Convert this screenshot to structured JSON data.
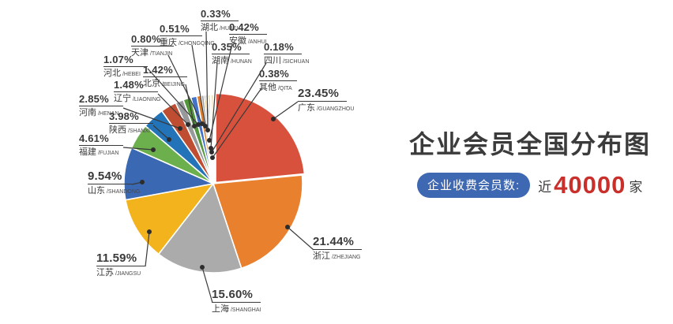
{
  "title": "企业会员全国分布图",
  "badge": {
    "label": "企业收费会员数:",
    "prefix": "近",
    "count": "40000",
    "suffix": "家",
    "badge_color": "#3e68b2",
    "count_color": "#c9302b"
  },
  "chart_data": {
    "type": "pie",
    "title": "企业会员全国分布图",
    "unit": "%",
    "total": 100,
    "legend_position": "callout-labels",
    "series": [
      {
        "name": "广东",
        "pinyin": "GUANGZHOU",
        "value": 23.45,
        "percent_label": "23.45%",
        "color": "#d8513d"
      },
      {
        "name": "浙江",
        "pinyin": "ZHEJIANG",
        "value": 21.44,
        "percent_label": "21.44%",
        "color": "#e8802e"
      },
      {
        "name": "上海",
        "pinyin": "SHANGHAI",
        "value": 15.6,
        "percent_label": "15.60%",
        "color": "#ababab"
      },
      {
        "name": "江苏",
        "pinyin": "JIANGSU",
        "value": 11.59,
        "percent_label": "11.59%",
        "color": "#f2b31c"
      },
      {
        "name": "山东",
        "pinyin": "SHANDONG",
        "value": 9.54,
        "percent_label": "9.54%",
        "color": "#3a68b2"
      },
      {
        "name": "福建",
        "pinyin": "FUJIAN",
        "value": 4.61,
        "percent_label": "4.61%",
        "color": "#6cb04e"
      },
      {
        "name": "陕西",
        "pinyin": "SHANXI",
        "value": 3.98,
        "percent_label": "3.98%",
        "color": "#2273b8"
      },
      {
        "name": "河南",
        "pinyin": "HENAN",
        "value": 2.85,
        "percent_label": "2.85%",
        "color": "#be4d31"
      },
      {
        "name": "辽宁",
        "pinyin": "LIAONING",
        "value": 1.48,
        "percent_label": "1.48%",
        "color": "#97999b"
      },
      {
        "name": "北京",
        "pinyin": "BEIJING",
        "value": 1.42,
        "percent_label": "1.42%",
        "color": "#55973d"
      },
      {
        "name": "河北",
        "pinyin": "HEBEI",
        "value": 1.07,
        "percent_label": "1.07%",
        "color": "#4273c8"
      },
      {
        "name": "天津",
        "pinyin": "TIANJIN",
        "value": 0.8,
        "percent_label": "0.80%",
        "color": "#e07b2a"
      },
      {
        "name": "重庆",
        "pinyin": "CHONGQING",
        "value": 0.51,
        "percent_label": "0.51%",
        "color": "#a5a5a5"
      },
      {
        "name": "湖北",
        "pinyin": "HUBEI",
        "value": 0.33,
        "percent_label": "0.33%",
        "color": "#d3a017"
      },
      {
        "name": "安徽",
        "pinyin": "ANHUI",
        "value": 0.42,
        "percent_label": "0.42%",
        "color": "#85aed6"
      },
      {
        "name": "湖南",
        "pinyin": "HUNAN",
        "value": 0.35,
        "percent_label": "0.35%",
        "color": "#bfb264"
      },
      {
        "name": "四川",
        "pinyin": "SICHUAN",
        "value": 0.18,
        "percent_label": "0.18%",
        "color": "#6e6e6e"
      },
      {
        "name": "其他",
        "pinyin": "QITA",
        "value": 0.38,
        "percent_label": "0.38%",
        "color": "#e3d3a3"
      }
    ]
  }
}
